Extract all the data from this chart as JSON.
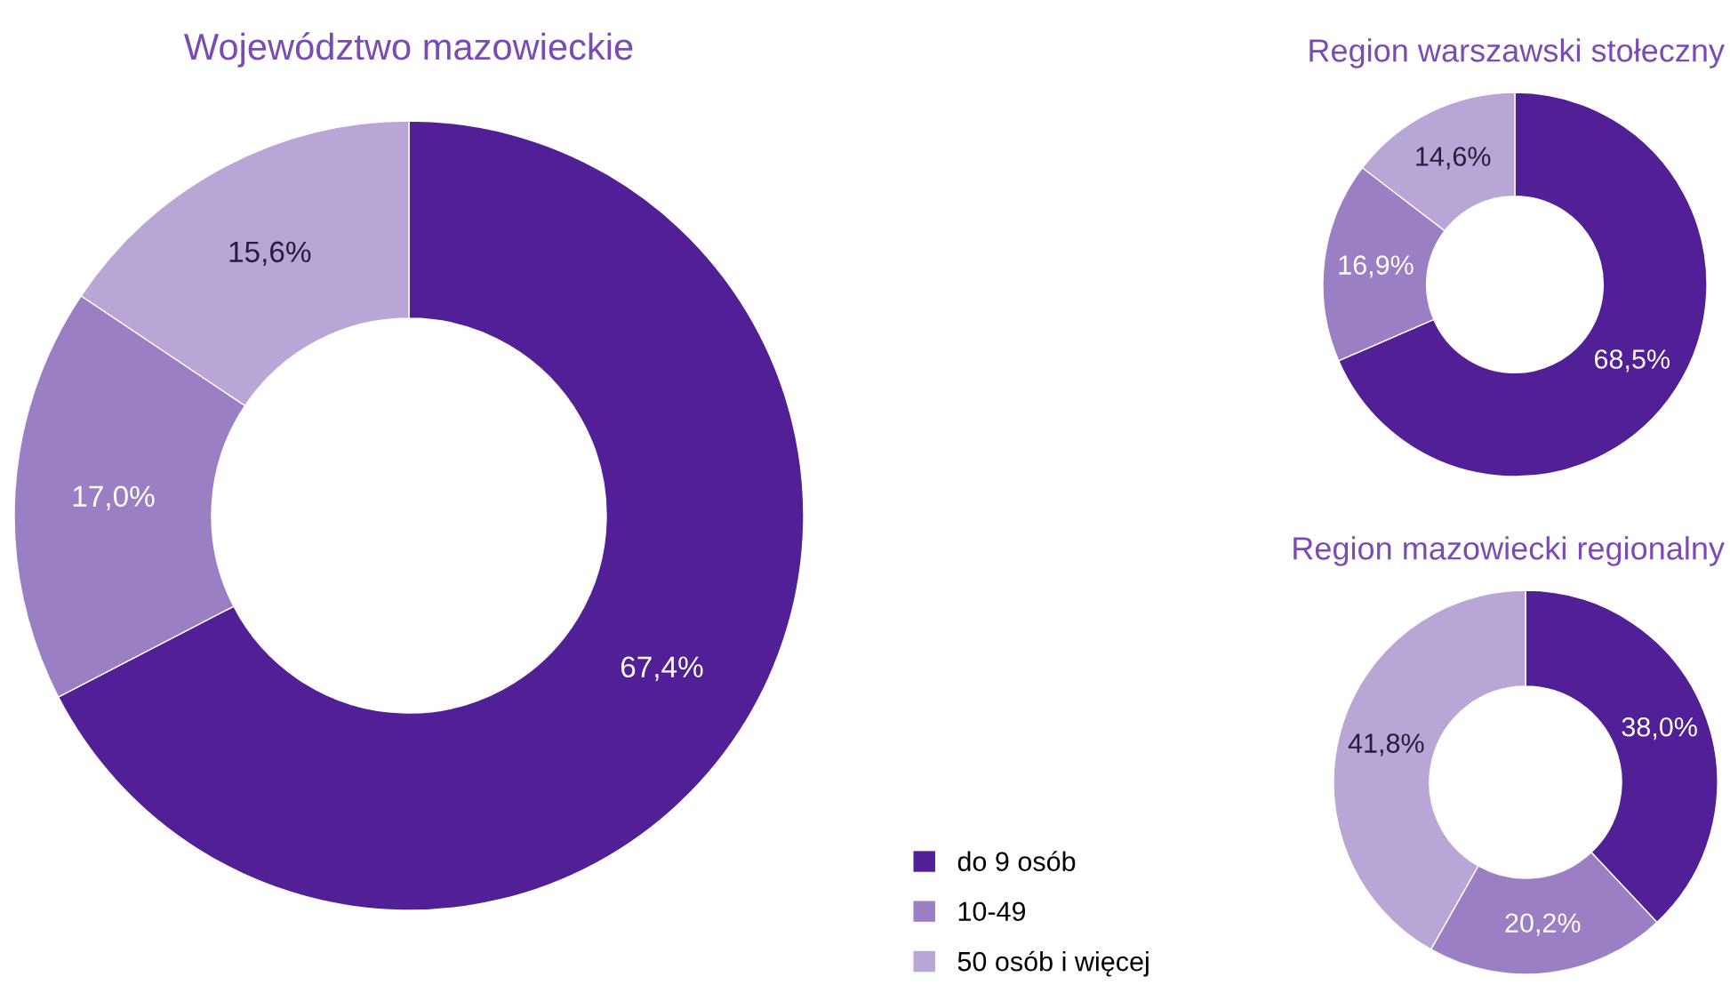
{
  "chart_data": [
    {
      "type": "donut",
      "title": "Województwo mazowieckie",
      "categories": [
        "do 9 osób",
        "10-49",
        "50 osób i więcej"
      ],
      "values": [
        67.4,
        17.0,
        15.6
      ],
      "value_labels": [
        "67,4%",
        "17,0%",
        "15,6%"
      ],
      "colors": [
        "#522096",
        "#9b7fc4",
        "#b8a6d6"
      ],
      "legend": "bottom right"
    },
    {
      "type": "donut",
      "title": "Region warszawski stołeczny",
      "categories": [
        null,
        null,
        null
      ],
      "values": [
        68.5,
        16.9,
        14.6
      ],
      "value_labels": [
        "68,5%",
        "16,9%",
        "14,6%"
      ],
      "colors": [
        "#522096",
        "#9b7fc4",
        "#b8a6d6"
      ]
    },
    {
      "type": "donut",
      "title": "Region mazowiecki regionalny",
      "categories": [
        null,
        null,
        null
      ],
      "values": [
        38.0,
        20.2,
        41.8
      ],
      "value_labels": [
        "38,0%",
        "20,2%",
        "41,8%"
      ],
      "colors": [
        "#522096",
        "#9b7fc4",
        "#b8a6d6"
      ]
    }
  ]
}
